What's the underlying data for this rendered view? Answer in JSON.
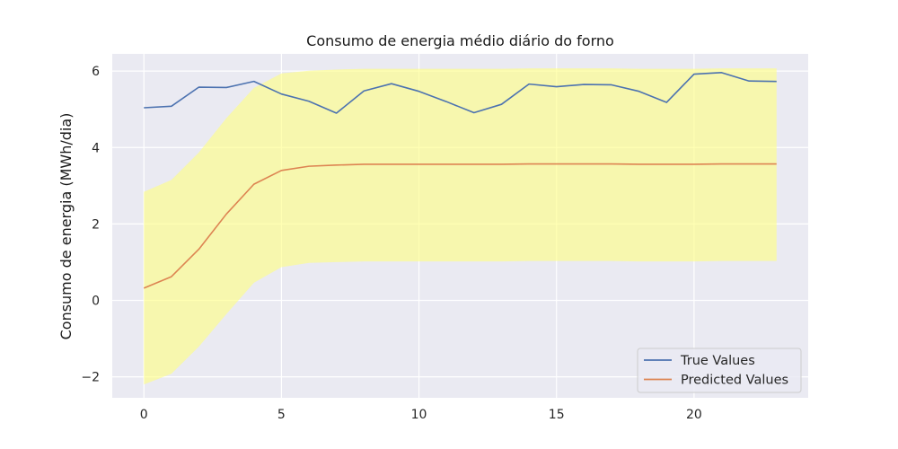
{
  "chart_data": {
    "type": "line",
    "title": "Consumo de energia médio diário do forno",
    "xlabel": "",
    "ylabel": "Consumo de energia (MWh/dia)",
    "xlim": [
      -1.15,
      24.15
    ],
    "ylim": [
      -2.55,
      6.45
    ],
    "grid": true,
    "legend_position": "bottom-right",
    "x": [
      0,
      1,
      2,
      3,
      4,
      5,
      6,
      7,
      8,
      9,
      10,
      11,
      12,
      13,
      14,
      15,
      16,
      17,
      18,
      19,
      20,
      21,
      22,
      23
    ],
    "xticks": [
      "0",
      "5",
      "10",
      "15",
      "20"
    ],
    "xtick_values": [
      0,
      5,
      10,
      15,
      20
    ],
    "yticks": [
      "−2",
      "0",
      "2",
      "4",
      "6"
    ],
    "ytick_values": [
      -2,
      0,
      2,
      4,
      6
    ],
    "series": [
      {
        "name": "True Values",
        "color": "#4c72b0",
        "values": [
          5.04,
          5.08,
          5.58,
          5.57,
          5.73,
          5.4,
          5.21,
          4.9,
          5.48,
          5.67,
          5.47,
          5.2,
          4.91,
          5.13,
          5.66,
          5.59,
          5.65,
          5.64,
          5.47,
          5.18,
          5.92,
          5.96,
          5.74,
          5.73
        ]
      },
      {
        "name": "Predicted Values",
        "color": "#dd8452",
        "values": [
          0.32,
          0.62,
          1.34,
          2.26,
          3.04,
          3.4,
          3.51,
          3.54,
          3.56,
          3.56,
          3.56,
          3.56,
          3.56,
          3.56,
          3.57,
          3.57,
          3.57,
          3.57,
          3.56,
          3.56,
          3.56,
          3.57,
          3.57,
          3.57
        ]
      }
    ],
    "confidence_band": {
      "color": "#ffff80",
      "lower": [
        -2.2,
        -1.92,
        -1.21,
        -0.36,
        0.46,
        0.87,
        0.98,
        1.0,
        1.02,
        1.02,
        1.02,
        1.02,
        1.02,
        1.02,
        1.03,
        1.03,
        1.03,
        1.03,
        1.02,
        1.02,
        1.02,
        1.03,
        1.03,
        1.03
      ],
      "upper": [
        2.84,
        3.15,
        3.87,
        4.77,
        5.56,
        5.94,
        6.01,
        6.04,
        6.06,
        6.06,
        6.06,
        6.06,
        6.06,
        6.06,
        6.07,
        6.07,
        6.07,
        6.07,
        6.06,
        6.06,
        6.06,
        6.07,
        6.07,
        6.07
      ]
    }
  }
}
